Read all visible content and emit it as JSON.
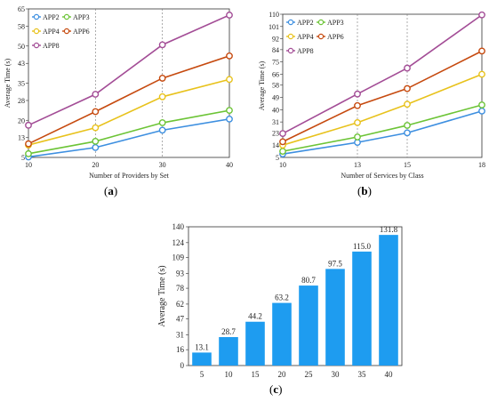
{
  "chart_data": [
    {
      "type": "line",
      "panel_label": "(a)",
      "panel_letter": "a",
      "xlabel": "Number of Providers by Set",
      "ylabel": "Average Time (s)",
      "x": [
        10,
        20,
        30,
        40
      ],
      "xlim": [
        10,
        40
      ],
      "ylim": [
        5,
        65
      ],
      "yticks": [
        5,
        13,
        20,
        28,
        35,
        43,
        50,
        58,
        65
      ],
      "grid": "vertical-dashed",
      "legend_position": "top-left",
      "series": [
        {
          "name": "APP2",
          "color": "#3d8fe0",
          "values": [
            5.2,
            9.0,
            16.0,
            20.5
          ]
        },
        {
          "name": "APP3",
          "color": "#6cc436",
          "values": [
            6.5,
            11.5,
            19.0,
            24.0
          ]
        },
        {
          "name": "APP4",
          "color": "#e8c21c",
          "values": [
            10.0,
            17.0,
            29.5,
            36.5
          ]
        },
        {
          "name": "APP6",
          "color": "#c64a0f",
          "values": [
            10.5,
            23.5,
            37.0,
            46.0
          ]
        },
        {
          "name": "APP8",
          "color": "#a34d96",
          "values": [
            18.0,
            30.5,
            50.5,
            62.5
          ]
        }
      ]
    },
    {
      "type": "line",
      "panel_label": "(b)",
      "panel_letter": "b",
      "xlabel": "Number of Services by Class",
      "ylabel": "Average Time (s)",
      "x": [
        10,
        13,
        15,
        18
      ],
      "xlim": [
        10,
        18
      ],
      "ylim": [
        5,
        110
      ],
      "yticks": [
        5,
        14,
        23,
        31,
        40,
        49,
        58,
        66,
        75,
        84,
        92,
        101,
        110
      ],
      "grid": "vertical-dashed",
      "legend_position": "top-left",
      "series": [
        {
          "name": "APP2",
          "color": "#3d8fe0",
          "values": [
            7.5,
            16.0,
            23.0,
            39.0
          ]
        },
        {
          "name": "APP3",
          "color": "#6cc436",
          "values": [
            9.5,
            20.0,
            28.5,
            43.5
          ]
        },
        {
          "name": "APP4",
          "color": "#e8c21c",
          "values": [
            14.0,
            30.5,
            44.0,
            66.0
          ]
        },
        {
          "name": "APP6",
          "color": "#c64a0f",
          "values": [
            16.5,
            43.0,
            55.5,
            83.0
          ]
        },
        {
          "name": "APP8",
          "color": "#a34d96",
          "values": [
            22.5,
            51.5,
            70.5,
            109.5
          ]
        }
      ]
    },
    {
      "type": "bar",
      "panel_label": "(c)",
      "panel_letter": "c",
      "xlabel": "",
      "ylabel": "Average Time (s)",
      "categories": [
        "5",
        "10",
        "15",
        "20",
        "25",
        "30",
        "35",
        "40"
      ],
      "values": [
        13.1,
        28.7,
        44.2,
        63.2,
        80.7,
        97.5,
        115.0,
        131.8
      ],
      "value_labels": [
        "13.1",
        "28.7",
        "44.2",
        "63.2",
        "80.7",
        "97.5",
        "115.0",
        "131.8"
      ],
      "ylim": [
        0,
        140
      ],
      "yticks": [
        0,
        16,
        31,
        47,
        62,
        78,
        93,
        109,
        124,
        140
      ],
      "bar_color": "#1e9cf0"
    }
  ]
}
